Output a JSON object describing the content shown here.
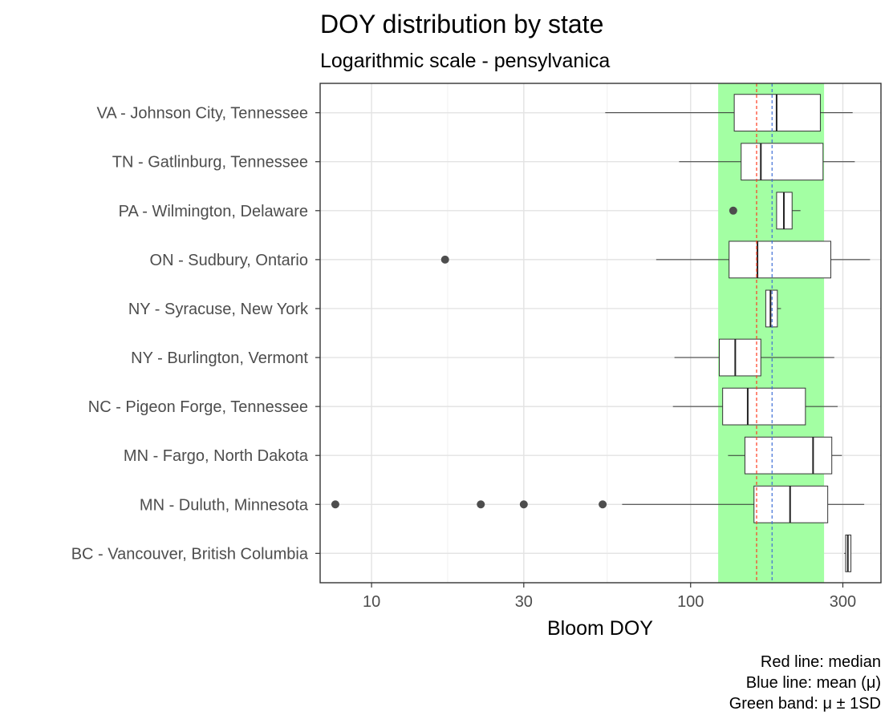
{
  "chart_data": {
    "type": "boxplot",
    "title": "DOY distribution by state",
    "subtitle": "Logarithmic scale - pensylvanica",
    "xlabel": "Bloom DOY",
    "ylabel": "",
    "x_scale": "log10",
    "xlim": [
      6.9,
      395
    ],
    "x_ticks": [
      10,
      30,
      100,
      300
    ],
    "x_tick_labels": [
      "10",
      "30",
      "100",
      "300"
    ],
    "grid": true,
    "reference_lines": {
      "median": 161,
      "mean": 180,
      "band": [
        122,
        262
      ]
    },
    "colors": {
      "median_line": "#FF3B1F",
      "mean_line": "#3F6FD6",
      "band": "#A3FFA3"
    },
    "caption": [
      "Red line: median",
      "Blue line: mean (μ)",
      "Green band: μ ± 1SD"
    ],
    "categories": [
      "VA - Johnson City, Tennessee",
      "TN - Gatlinburg, Tennessee",
      "PA - Wilmington, Delaware",
      "ON - Sudbury, Ontario",
      "NY - Syracuse, New York",
      "NY - Burlington, Vermont",
      "NC - Pigeon Forge, Tennessee",
      "MN - Fargo, North Dakota",
      "MN - Duluth, Minnesota",
      "BC - Vancouver, British Columbia"
    ],
    "boxes": [
      {
        "whisker_low": 54,
        "q1": 137,
        "median": 186,
        "q3": 255,
        "whisker_high": 322,
        "outliers": []
      },
      {
        "whisker_low": 92,
        "q1": 144,
        "median": 166,
        "q3": 260,
        "whisker_high": 327,
        "outliers": []
      },
      {
        "whisker_low": 186,
        "q1": 186,
        "median": 196,
        "q3": 208,
        "whisker_high": 221,
        "outliers": [
          136
        ]
      },
      {
        "whisker_low": 78,
        "q1": 132,
        "median": 162,
        "q3": 275,
        "whisker_high": 365,
        "outliers": [
          17
        ]
      },
      {
        "whisker_low": 172,
        "q1": 172,
        "median": 178,
        "q3": 187,
        "whisker_high": 192,
        "outliers": []
      },
      {
        "whisker_low": 89,
        "q1": 123,
        "median": 138,
        "q3": 166,
        "whisker_high": 282,
        "outliers": []
      },
      {
        "whisker_low": 88,
        "q1": 126,
        "median": 151,
        "q3": 229,
        "whisker_high": 289,
        "outliers": []
      },
      {
        "whisker_low": 131,
        "q1": 148,
        "median": 242,
        "q3": 277,
        "whisker_high": 298,
        "outliers": []
      },
      {
        "whisker_low": 61,
        "q1": 158,
        "median": 205,
        "q3": 269,
        "whisker_high": 350,
        "outliers": [
          7.7,
          22,
          30,
          53
        ]
      },
      {
        "whisker_low": 303,
        "q1": 306,
        "median": 311,
        "q3": 318,
        "whisker_high": 318,
        "outliers": []
      }
    ]
  }
}
